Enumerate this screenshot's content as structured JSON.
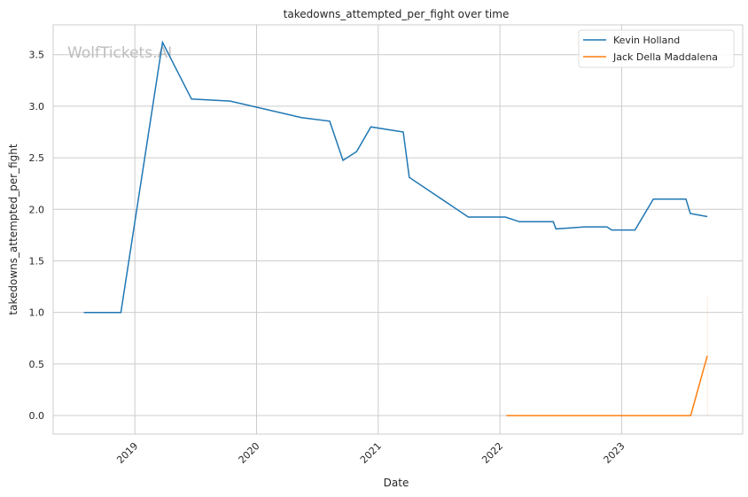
{
  "chart_data": {
    "type": "line",
    "title": "takedowns_attempted_per_fight over time",
    "xlabel": "Date",
    "ylabel": "takedowns_attempted_per_fight",
    "watermark": "WolfTickets.AI",
    "xlim": [
      "2018-05-01",
      "2023-12-30"
    ],
    "ylim": [
      -0.18,
      3.79
    ],
    "xticks": [
      "2019",
      "2020",
      "2021",
      "2022",
      "2023"
    ],
    "yticks": [
      0.0,
      0.5,
      1.0,
      1.5,
      2.0,
      2.5,
      3.0,
      3.5
    ],
    "ytick_labels": [
      "0.0",
      "0.5",
      "1.0",
      "1.5",
      "2.0",
      "2.5",
      "3.0",
      "3.5"
    ],
    "grid": true,
    "legend_position": "top-right",
    "series": [
      {
        "name": "Kevin Holland",
        "color": "#1f77b4",
        "points": [
          [
            "2018-08-01",
            1.0
          ],
          [
            "2018-11-20",
            1.0
          ],
          [
            "2019-03-25",
            3.62
          ],
          [
            "2019-06-20",
            3.07
          ],
          [
            "2019-10-14",
            3.05
          ],
          [
            "2020-05-15",
            2.89
          ],
          [
            "2020-08-08",
            2.855
          ],
          [
            "2020-09-17",
            2.475
          ],
          [
            "2020-10-28",
            2.56
          ],
          [
            "2020-12-10",
            2.8
          ],
          [
            "2021-03-17",
            2.75
          ],
          [
            "2021-04-04",
            2.31
          ],
          [
            "2021-09-28",
            1.925
          ],
          [
            "2022-01-17",
            1.925
          ],
          [
            "2022-03-01",
            1.88
          ],
          [
            "2022-06-10",
            1.88
          ],
          [
            "2022-06-18",
            1.81
          ],
          [
            "2022-09-11",
            1.83
          ],
          [
            "2022-11-18",
            1.83
          ],
          [
            "2022-12-02",
            1.8
          ],
          [
            "2023-02-10",
            1.8
          ],
          [
            "2023-04-06",
            2.1
          ],
          [
            "2023-07-13",
            2.1
          ],
          [
            "2023-07-26",
            1.96
          ],
          [
            "2023-09-15",
            1.93
          ]
        ]
      },
      {
        "name": "Jack Della Maddalena",
        "color": "#ff7f0e",
        "points": [
          [
            "2022-01-20",
            0.0
          ],
          [
            "2023-07-27",
            0.0
          ],
          [
            "2023-09-15",
            0.58
          ]
        ]
      }
    ]
  }
}
